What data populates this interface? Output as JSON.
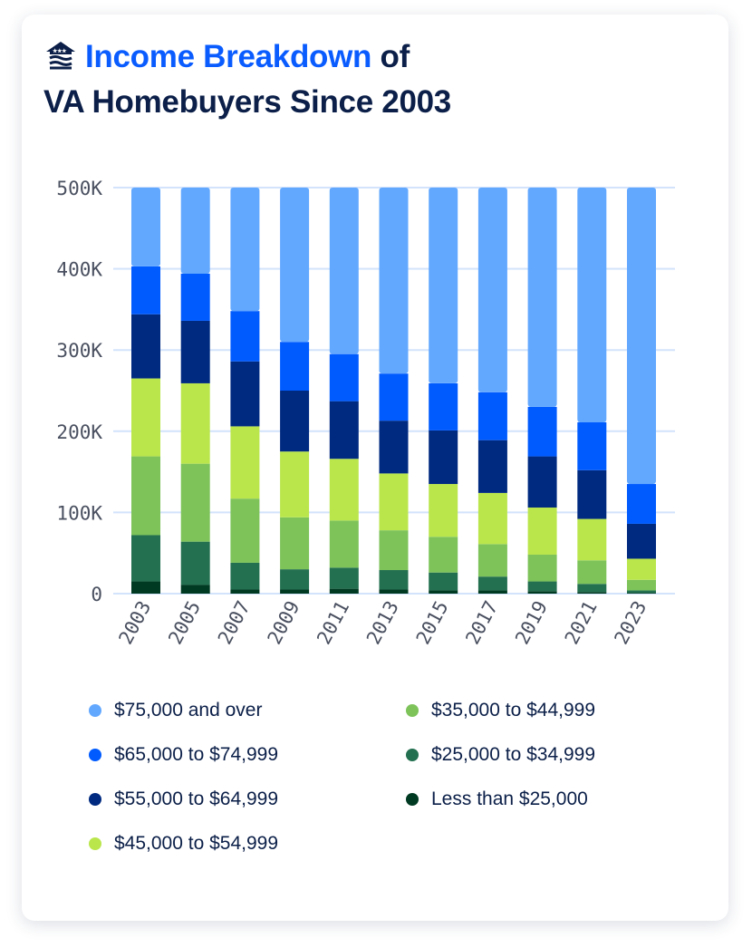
{
  "title": {
    "highlight": "Income Breakdown",
    "rest1": " of",
    "line2": "VA Homebuyers Since 2003"
  },
  "logo_icon": "house-flag-icon",
  "chart_data": {
    "type": "bar",
    "stacked": true,
    "categories": [
      "2003",
      "2005",
      "2007",
      "2009",
      "2011",
      "2013",
      "2015",
      "2017",
      "2019",
      "2021",
      "2023"
    ],
    "ylim": [
      0,
      500000
    ],
    "yticks": [
      0,
      100000,
      200000,
      300000,
      400000,
      500000
    ],
    "ytick_labels": [
      "0",
      "100K",
      "200K",
      "300K",
      "400K",
      "500K"
    ],
    "grid": true,
    "legend_position": "bottom",
    "series": [
      {
        "name": "Less than $25,000",
        "color": "#003a22",
        "values": [
          15000,
          11000,
          5000,
          5000,
          6000,
          5000,
          4000,
          4000,
          3000,
          2000,
          1000
        ]
      },
      {
        "name": "$25,000 to $34,999",
        "color": "#237050",
        "values": [
          57000,
          53000,
          33000,
          25000,
          26000,
          24000,
          22000,
          17000,
          12000,
          10000,
          3000
        ]
      },
      {
        "name": "$35,000 to $44,999",
        "color": "#7dc35a",
        "values": [
          97000,
          96000,
          79000,
          64000,
          58000,
          49000,
          44000,
          40000,
          33000,
          29000,
          13000
        ]
      },
      {
        "name": "$45,000 to $54,999",
        "color": "#bae64c",
        "values": [
          96000,
          99000,
          89000,
          81000,
          76000,
          70000,
          65000,
          63000,
          58000,
          51000,
          26000
        ]
      },
      {
        "name": "$55,000 to $64,999",
        "color": "#002a80",
        "values": [
          79000,
          77000,
          80000,
          75000,
          71000,
          65000,
          66000,
          65000,
          63000,
          60000,
          43000
        ]
      },
      {
        "name": "$65,000 to $74,999",
        "color": "#005bff",
        "values": [
          59000,
          58000,
          62000,
          60000,
          58000,
          58000,
          58000,
          59000,
          61000,
          59000,
          49000
        ]
      },
      {
        "name": "$75,000 and over",
        "color": "#62a8ff",
        "values": [
          97000,
          106000,
          152000,
          190000,
          205000,
          229000,
          241000,
          252000,
          270000,
          289000,
          365000
        ]
      }
    ]
  },
  "legend": [
    {
      "label": "$75,000 and over",
      "color": "#62a8ff"
    },
    {
      "label": "$35,000 to $44,999",
      "color": "#7dc35a"
    },
    {
      "label": "$65,000 to $74,999",
      "color": "#005bff"
    },
    {
      "label": "$25,000 to $34,999",
      "color": "#237050"
    },
    {
      "label": "$55,000 to $64,999",
      "color": "#002a80"
    },
    {
      "label": "Less than $25,000",
      "color": "#003a22"
    },
    {
      "label": "$45,000 to $54,999",
      "color": "#bae64c"
    }
  ]
}
